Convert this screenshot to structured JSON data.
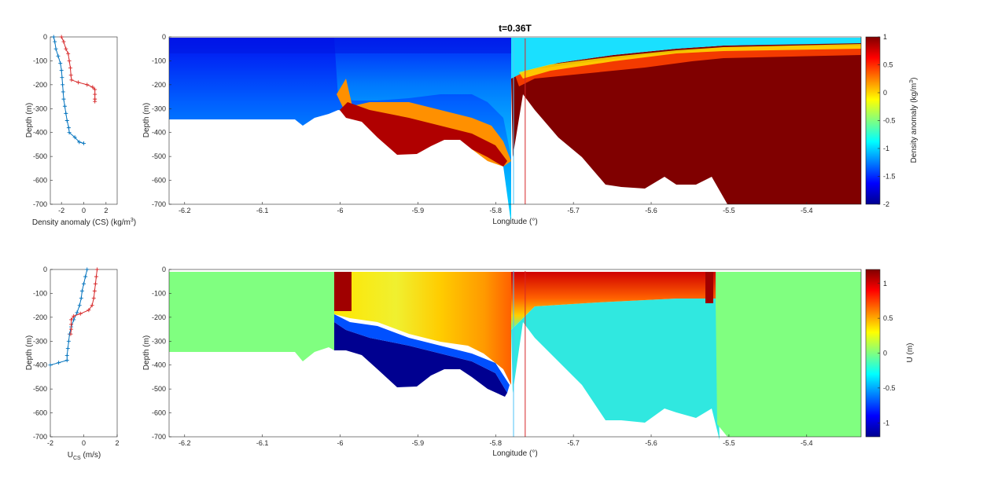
{
  "figure_title": "t=0.36T",
  "colormap": [
    "#00008f",
    "#0000ff",
    "#0080ff",
    "#00ffff",
    "#80ff80",
    "#ffff00",
    "#ff8000",
    "#ff0000",
    "#800000"
  ],
  "chart_data": [
    {
      "id": "top-profile",
      "type": "line",
      "xlabel_parts": [
        "Density anomaly (CS) (kg/m",
        "3",
        ")"
      ],
      "ylabel": "Depth (m)",
      "xlim": [
        -3,
        3
      ],
      "ylim": [
        -700,
        0
      ],
      "xticks": [
        -2,
        0,
        2
      ],
      "yticks": [
        -700,
        -600,
        -500,
        -400,
        -300,
        -200,
        -100,
        0
      ],
      "series": [
        {
          "color": "#0072bd",
          "points": [
            [
              -2.7,
              0
            ],
            [
              -2.6,
              -20
            ],
            [
              -2.5,
              -50
            ],
            [
              -2.3,
              -80
            ],
            [
              -2.1,
              -110
            ],
            [
              -2.0,
              -140
            ],
            [
              -1.95,
              -170
            ],
            [
              -1.9,
              -200
            ],
            [
              -1.85,
              -230
            ],
            [
              -1.8,
              -260
            ],
            [
              -1.7,
              -290
            ],
            [
              -1.6,
              -320
            ],
            [
              -1.5,
              -350
            ],
            [
              -1.35,
              -380
            ],
            [
              -1.3,
              -400
            ],
            [
              -0.8,
              -420
            ],
            [
              -0.4,
              -440
            ],
            [
              0,
              -445
            ]
          ]
        },
        {
          "color": "#d62728",
          "points": [
            [
              -2.0,
              0
            ],
            [
              -1.8,
              -20
            ],
            [
              -1.6,
              -50
            ],
            [
              -1.4,
              -70
            ],
            [
              -1.3,
              -100
            ],
            [
              -1.2,
              -130
            ],
            [
              -1.15,
              -160
            ],
            [
              -1.1,
              -180
            ],
            [
              -0.5,
              -190
            ],
            [
              0.3,
              -200
            ],
            [
              0.8,
              -210
            ],
            [
              1.0,
              -220
            ],
            [
              1.0,
              -240
            ],
            [
              1.0,
              -260
            ],
            [
              1.0,
              -270
            ]
          ]
        }
      ]
    },
    {
      "id": "top-section",
      "type": "heatmap",
      "xlabel": "Longitude (°)",
      "ylabel": "Depth (m)",
      "xlim": [
        -6.22,
        -5.33
      ],
      "ylim": [
        -700,
        0
      ],
      "xticks": [
        -6.2,
        -6.1,
        -6,
        -5.9,
        -5.8,
        -5.7,
        -5.6,
        -5.5,
        -5.4
      ],
      "yticks": [
        -700,
        -600,
        -500,
        -400,
        -300,
        -200,
        -100,
        0
      ],
      "colorbar": {
        "label_parts": [
          "Density anomaly (kg/m",
          "3",
          ")"
        ],
        "clim": [
          -2,
          1
        ],
        "ticks": [
          -2,
          -1.5,
          -1,
          -0.5,
          0,
          0.5,
          1
        ]
      },
      "markers": [
        {
          "x": -5.777,
          "color": "#4fc3f7"
        },
        {
          "x": -5.762,
          "color": "#d62728"
        }
      ]
    },
    {
      "id": "bottom-profile",
      "type": "line",
      "xlabel_parts": [
        "U",
        "CS",
        " (m/s)"
      ],
      "ylabel": "Depth (m)",
      "xlim": [
        -2,
        2
      ],
      "ylim": [
        -700,
        0
      ],
      "xticks": [
        -2,
        0,
        2
      ],
      "yticks": [
        -700,
        -600,
        -500,
        -400,
        -300,
        -200,
        -100,
        0
      ],
      "series": [
        {
          "color": "#0072bd",
          "points": [
            [
              0.2,
              0
            ],
            [
              0.1,
              -30
            ],
            [
              0,
              -60
            ],
            [
              -0.1,
              -90
            ],
            [
              -0.15,
              -120
            ],
            [
              -0.25,
              -150
            ],
            [
              -0.4,
              -180
            ],
            [
              -0.6,
              -210
            ],
            [
              -0.75,
              -240
            ],
            [
              -0.85,
              -270
            ],
            [
              -0.9,
              -300
            ],
            [
              -0.95,
              -330
            ],
            [
              -1.0,
              -360
            ],
            [
              -1.0,
              -380
            ],
            [
              -1.5,
              -390
            ],
            [
              -2.0,
              -400
            ]
          ]
        },
        {
          "color": "#d62728",
          "points": [
            [
              0.8,
              0
            ],
            [
              0.75,
              -30
            ],
            [
              0.7,
              -60
            ],
            [
              0.65,
              -90
            ],
            [
              0.6,
              -120
            ],
            [
              0.5,
              -150
            ],
            [
              0.3,
              -170
            ],
            [
              -0.2,
              -185
            ],
            [
              -0.6,
              -195
            ],
            [
              -0.75,
              -210
            ],
            [
              -0.75,
              -230
            ],
            [
              -0.75,
              -250
            ],
            [
              -0.78,
              -270
            ]
          ]
        }
      ]
    },
    {
      "id": "bottom-section",
      "type": "heatmap",
      "xlabel": "Longitude (°)",
      "ylabel": "Depth (m)",
      "xlim": [
        -6.22,
        -5.33
      ],
      "ylim": [
        -700,
        0
      ],
      "xticks": [
        -6.2,
        -6.1,
        -6,
        -5.9,
        -5.8,
        -5.7,
        -5.6,
        -5.5,
        -5.4
      ],
      "yticks": [
        -700,
        -600,
        -500,
        -400,
        -300,
        -200,
        -100,
        0
      ],
      "colorbar": {
        "label": "U (m)",
        "clim": [
          -1.2,
          1.2
        ],
        "ticks": [
          -1,
          -0.5,
          0,
          0.5,
          1
        ]
      },
      "markers": [
        {
          "x": -5.777,
          "color": "#4fc3f7"
        },
        {
          "x": -5.762,
          "color": "#d62728"
        }
      ]
    }
  ]
}
